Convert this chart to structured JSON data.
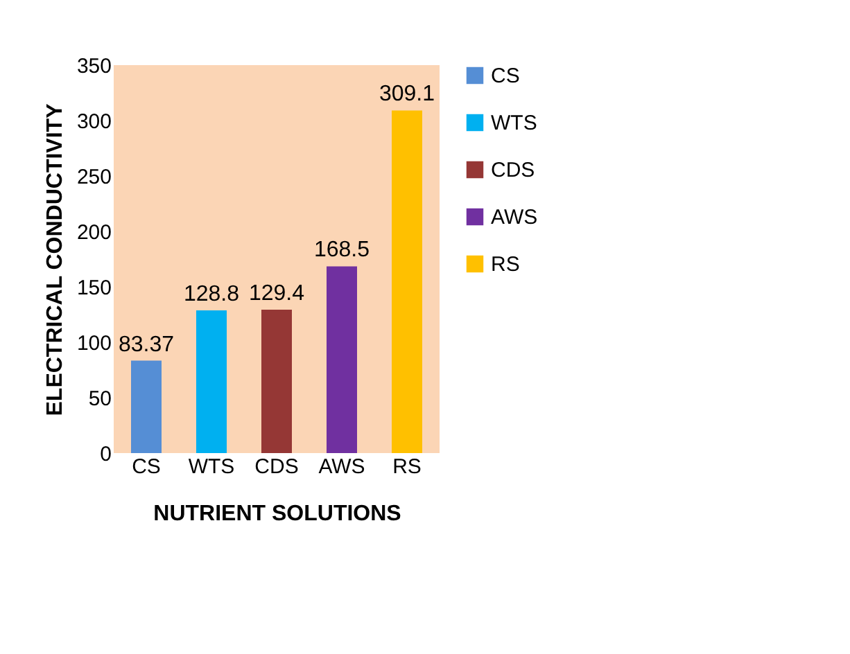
{
  "chart_data": {
    "type": "bar",
    "xlabel": "NUTRIENT SOLUTIONS",
    "ylabel": "ELECTRICAL CONDUCTIVITY",
    "categories": [
      "CS",
      "WTS",
      "CDS",
      "AWS",
      "RS"
    ],
    "series": [
      {
        "name": "CS",
        "color": "#558ed5",
        "values": [
          83.37,
          null,
          null,
          null,
          null
        ]
      },
      {
        "name": "WTS",
        "color": "#00b0f0",
        "values": [
          null,
          128.8,
          null,
          null,
          null
        ]
      },
      {
        "name": "CDS",
        "color": "#953735",
        "values": [
          null,
          null,
          129.4,
          null,
          null
        ]
      },
      {
        "name": "AWS",
        "color": "#7030a0",
        "values": [
          null,
          null,
          null,
          168.5,
          null
        ]
      },
      {
        "name": "RS",
        "color": "#ffc000",
        "values": [
          null,
          null,
          null,
          null,
          309.1
        ]
      }
    ],
    "ylim": [
      0,
      350
    ],
    "yticks": [
      0,
      50,
      100,
      150,
      200,
      250,
      300,
      350
    ],
    "grid": false,
    "legend": "right",
    "data_labels": true
  }
}
